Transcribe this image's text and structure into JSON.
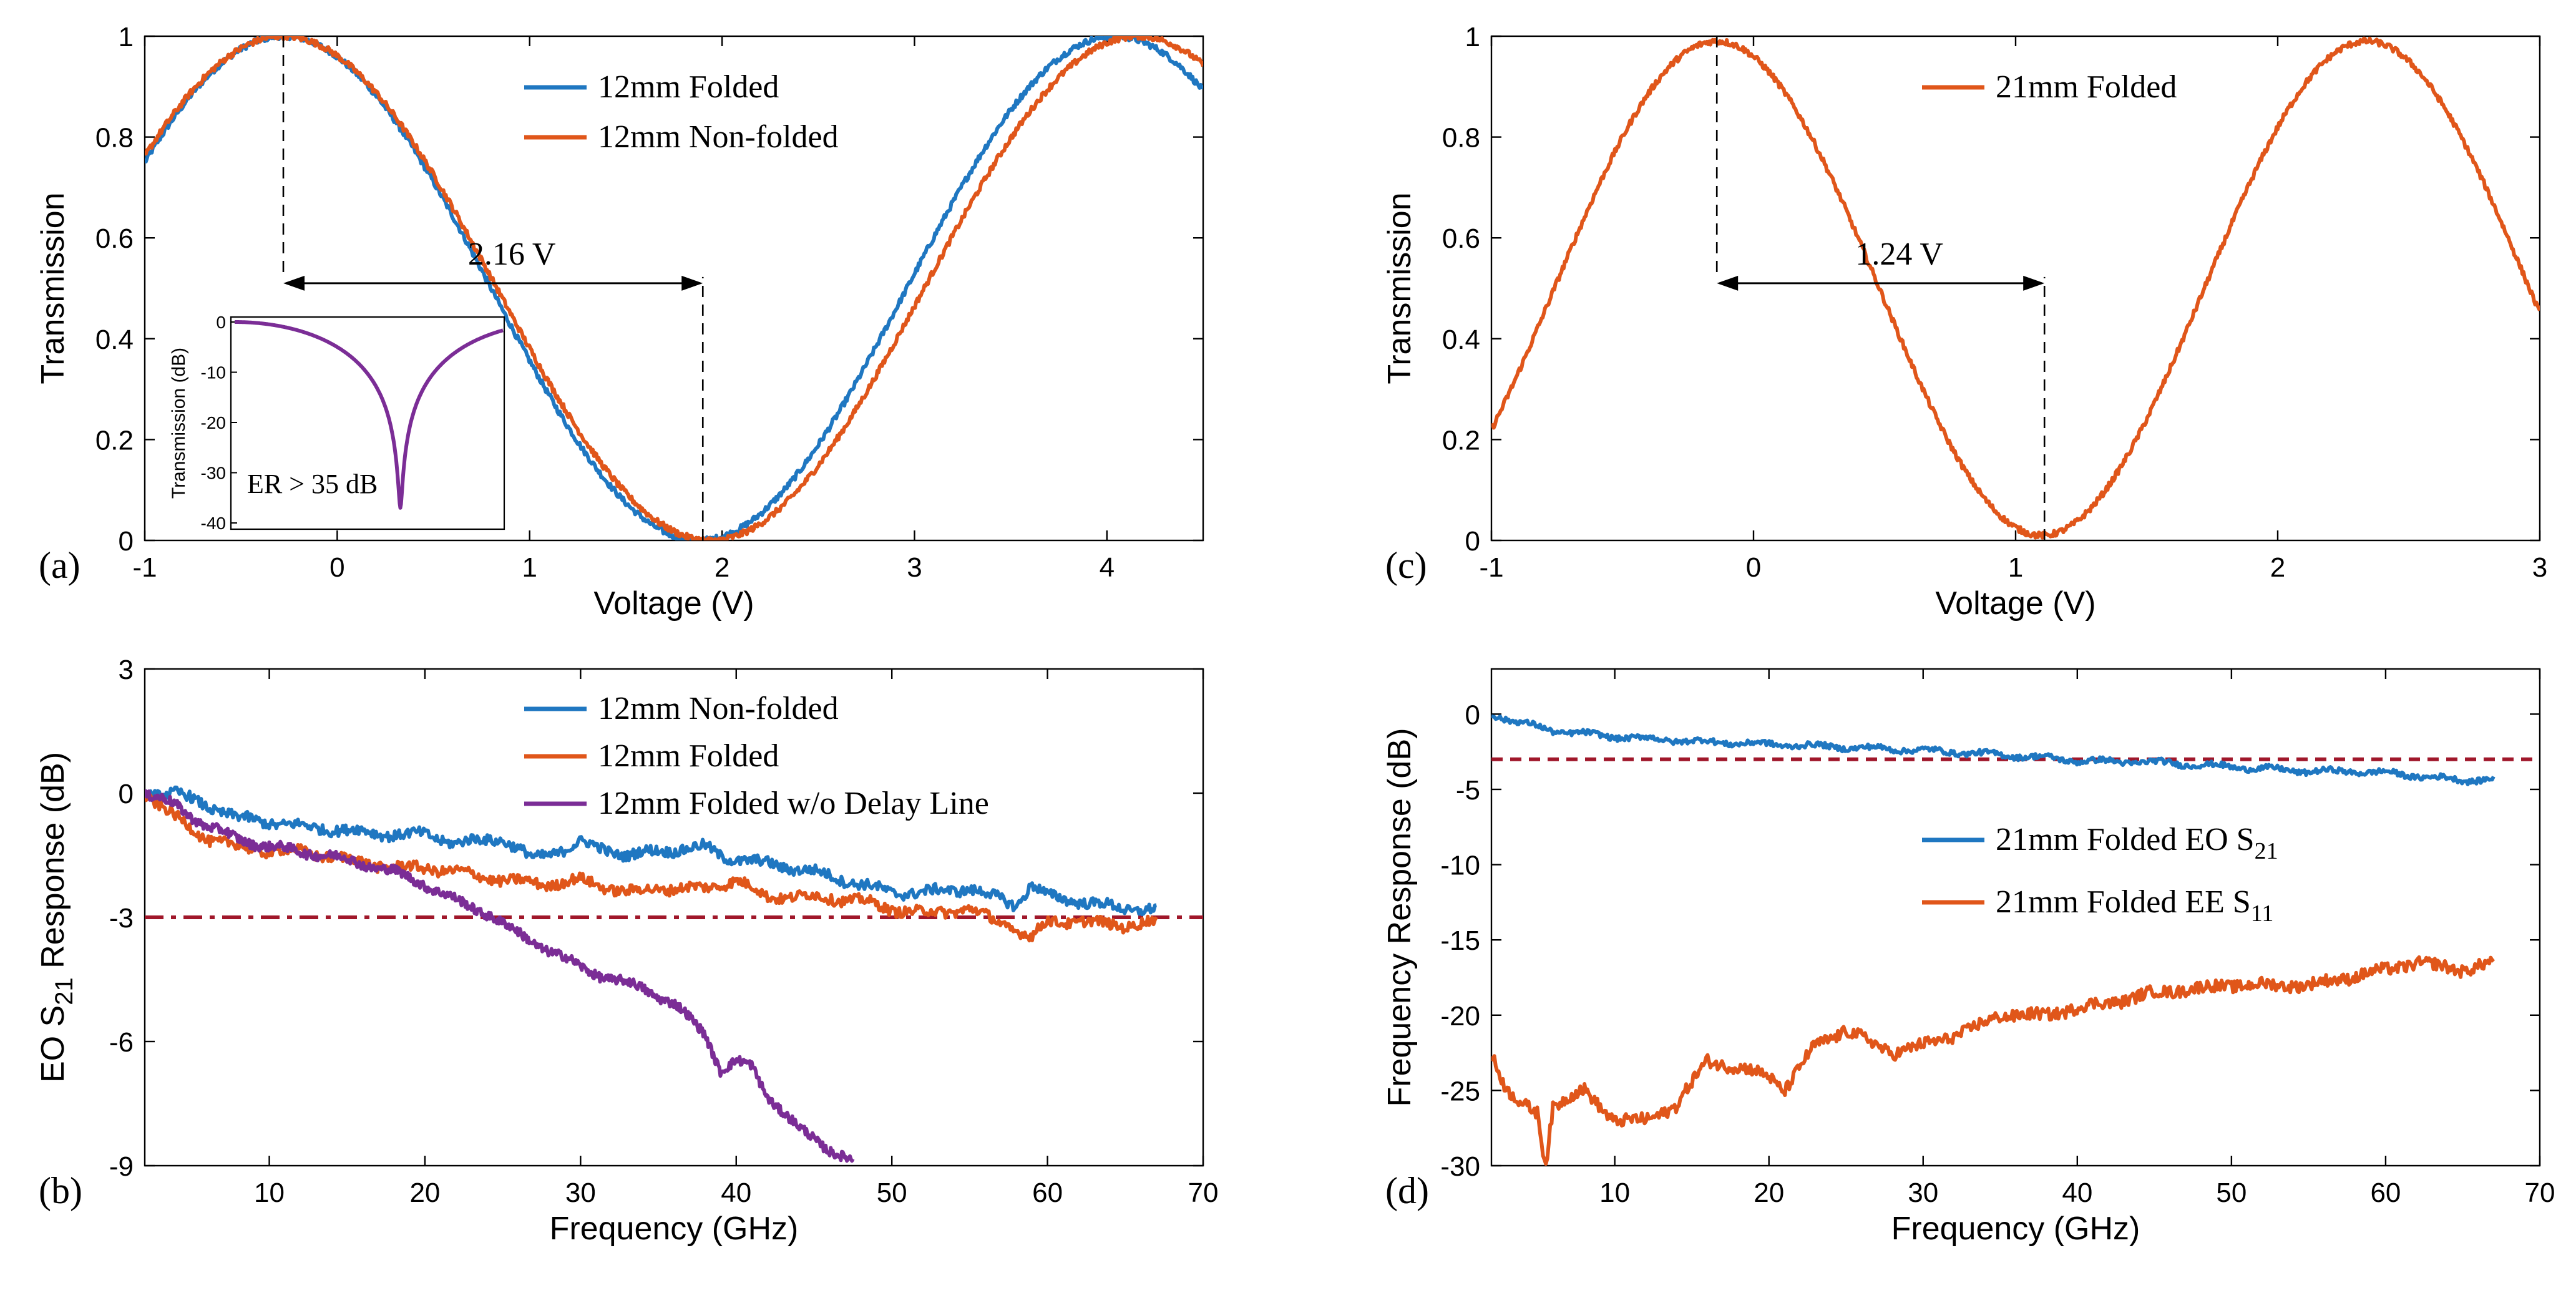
{
  "colors": {
    "blue": "#1f77c1",
    "orange": "#e0561a",
    "purple": "#7b2d96",
    "threshold": "#a0172a",
    "axis": "#000000"
  },
  "chart_data": [
    {
      "id": "a",
      "panel_label": "(a)",
      "type": "line",
      "xlabel": "Voltage (V)",
      "ylabel": "Transmission",
      "xlim": [
        -1,
        4.5
      ],
      "ylim": [
        0,
        1
      ],
      "xticks": [
        "-1",
        "0",
        "1",
        "2",
        "3",
        "4"
      ],
      "yticks": [
        "0",
        "0.2",
        "0.4",
        "0.6",
        "0.8",
        "1"
      ],
      "series": [
        {
          "name": "12mm Folded",
          "color": "blue",
          "model": "cos2",
          "peak_x": -0.28,
          "vpi": 2.16,
          "min_y": 0.0,
          "max_y": 1.0
        },
        {
          "name": "12mm Non-folded",
          "color": "orange",
          "model": "cos2",
          "peak_x": -0.28,
          "vpi": 2.22,
          "min_y": 0.0,
          "max_y": 1.0
        }
      ],
      "legend_position": "top-center",
      "annotation": {
        "text": "2.16 V",
        "x_start": -0.28,
        "x_end": 1.9,
        "y": 0.51
      },
      "inset": {
        "ylabel": "Transmission (dB)",
        "yticks": [
          "0",
          "-10",
          "-20",
          "-30",
          "-40"
        ],
        "ylim": [
          -40,
          0
        ],
        "dip_min_db": -37,
        "text": "ER > 35 dB",
        "color": "purple"
      }
    },
    {
      "id": "c",
      "panel_label": "(c)",
      "type": "line",
      "xlabel": "Voltage (V)",
      "ylabel": "Transmission",
      "xlim": [
        -1,
        3
      ],
      "ylim": [
        0,
        1
      ],
      "xticks": [
        "-1",
        "0",
        "1",
        "2",
        "3"
      ],
      "yticks": [
        "0",
        "0.2",
        "0.4",
        "0.6",
        "0.8",
        "1"
      ],
      "series": [
        {
          "name": "21mm Folded",
          "color": "orange",
          "model": "cos2",
          "peak_x": -0.14,
          "vpi": 1.24,
          "min_y": 0.01,
          "max_y": 0.99
        }
      ],
      "legend_position": "top-center",
      "annotation": {
        "text": "1.24 V",
        "x_start": -0.14,
        "x_end": 1.11,
        "y": 0.51
      }
    },
    {
      "id": "b",
      "panel_label": "(b)",
      "type": "line",
      "xlabel": "Frequency (GHz)",
      "ylabel": "EO S21 Response (dB)",
      "xlim": [
        2,
        70
      ],
      "ylim": [
        -9,
        3
      ],
      "xticks": [
        "10",
        "20",
        "30",
        "40",
        "50",
        "60",
        "70"
      ],
      "yticks": [
        "-9",
        "-6",
        "-3",
        "0",
        "3"
      ],
      "threshold_db": -3,
      "legend_position": "top-center",
      "series": [
        {
          "name": "12mm Non-folded",
          "color": "blue",
          "x": [
            2,
            4,
            6,
            8,
            10,
            12,
            15,
            18,
            20,
            22,
            25,
            27,
            30,
            33,
            35,
            38,
            39,
            40,
            42,
            45,
            48,
            50,
            52,
            55,
            58,
            59,
            60,
            62,
            65,
            67
          ],
          "y": [
            0,
            0,
            -0.3,
            -0.6,
            -0.7,
            -0.8,
            -0.9,
            -1.0,
            -1.0,
            -1.2,
            -1.1,
            -1.6,
            -1.2,
            -1.5,
            -1.4,
            -1.3,
            -1.5,
            -1.6,
            -1.7,
            -1.9,
            -2.2,
            -2.4,
            -2.4,
            -2.3,
            -2.7,
            -2.2,
            -2.5,
            -2.6,
            -2.8,
            -2.8
          ]
        },
        {
          "name": "12mm Folded",
          "color": "orange",
          "x": [
            2,
            4,
            6,
            8,
            10,
            12,
            15,
            18,
            20,
            22,
            25,
            28,
            30,
            33,
            35,
            38,
            40,
            42,
            45,
            48,
            50,
            52,
            55,
            58,
            59,
            60,
            62,
            65,
            67
          ],
          "y": [
            0,
            -0.6,
            -1.1,
            -1.3,
            -1.4,
            -1.4,
            -1.6,
            -1.8,
            -1.8,
            -1.9,
            -2.1,
            -2.2,
            -2.1,
            -2.4,
            -2.3,
            -2.3,
            -2.1,
            -2.5,
            -2.5,
            -2.6,
            -2.8,
            -2.9,
            -2.8,
            -3.3,
            -3.5,
            -3.1,
            -3.1,
            -3.2,
            -3.1
          ]
        },
        {
          "name": "12mm Folded  w/o Delay Line",
          "color": "purple",
          "x": [
            2,
            4,
            6,
            8,
            10,
            12,
            15,
            18,
            20,
            22,
            24,
            26,
            28,
            30,
            32,
            34,
            36,
            38,
            39,
            40,
            41,
            42,
            44,
            46,
            47.5
          ],
          "y": [
            0,
            -0.3,
            -0.8,
            -1.1,
            -1.3,
            -1.4,
            -1.6,
            -1.9,
            -2.2,
            -2.6,
            -2.9,
            -3.4,
            -3.8,
            -4.2,
            -4.5,
            -4.7,
            -5.1,
            -5.8,
            -6.7,
            -6.5,
            -6.6,
            -7.3,
            -8.1,
            -8.6,
            -8.9
          ]
        }
      ]
    },
    {
      "id": "d",
      "panel_label": "(d)",
      "type": "line",
      "xlabel": "Frequency (GHz)",
      "ylabel": "Frequency Response (dB)",
      "xlim": [
        2,
        70
      ],
      "ylim": [
        -30,
        3
      ],
      "xticks": [
        "10",
        "20",
        "30",
        "40",
        "50",
        "60",
        "70"
      ],
      "yticks": [
        "-30",
        "-25",
        "-20",
        "-15",
        "-10",
        "-5",
        "0"
      ],
      "threshold_db": -3,
      "legend_position": "center-right",
      "series": [
        {
          "name": "21mm Folded EO S21",
          "legend_main": "21mm Folded EO S",
          "legend_sub": "21",
          "color": "blue",
          "x": [
            2,
            4,
            6,
            8,
            10,
            15,
            20,
            25,
            30,
            35,
            38,
            40,
            45,
            50,
            55,
            58,
            60,
            62,
            65,
            67
          ],
          "y": [
            0,
            -0.6,
            -1.1,
            -1.3,
            -1.5,
            -1.8,
            -2.0,
            -2.2,
            -2.4,
            -2.7,
            -2.9,
            -3.1,
            -3.2,
            -3.5,
            -3.8,
            -3.8,
            -3.9,
            -4.1,
            -4.4,
            -4.3
          ]
        },
        {
          "name": "21mm Folded EE S11",
          "legend_main": "21mm Folded EE S",
          "legend_sub": "11",
          "color": "orange",
          "x": [
            2,
            3,
            4,
            5,
            5.5,
            6,
            7,
            8,
            9,
            10,
            12,
            14,
            16,
            18,
            20,
            21,
            23,
            25,
            26,
            28,
            30,
            33,
            35,
            38,
            40,
            43,
            45,
            50,
            55,
            60,
            62,
            65,
            67
          ],
          "y": [
            -22.5,
            -25,
            -26,
            -26.5,
            -30,
            -26,
            -25.5,
            -25,
            -26,
            -27,
            -27,
            -26,
            -23,
            -23.5,
            -24,
            -25,
            -22,
            -21,
            -21.5,
            -22.5,
            -22,
            -21,
            -20,
            -20,
            -19.5,
            -19,
            -18.5,
            -18,
            -18,
            -17,
            -16.5,
            -17,
            -16.5
          ]
        }
      ]
    }
  ]
}
